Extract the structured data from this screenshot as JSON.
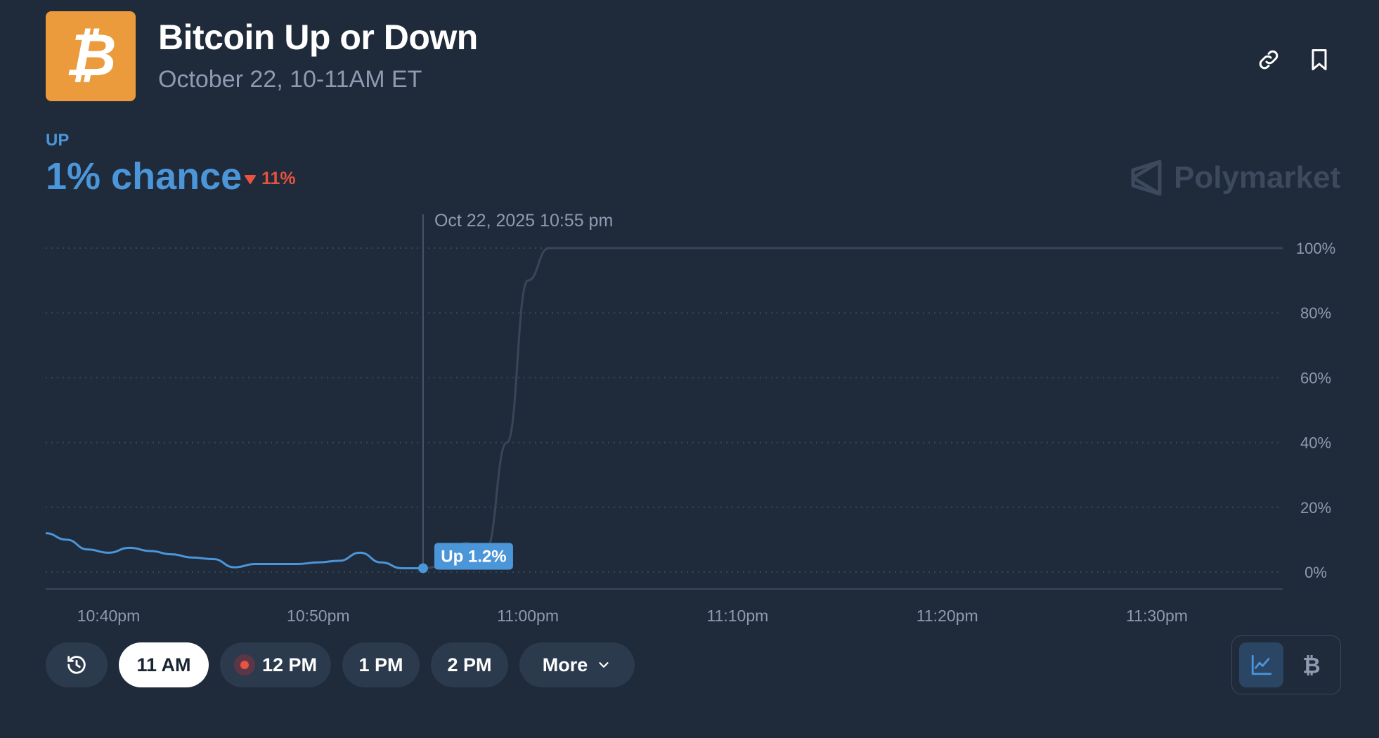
{
  "header": {
    "icon": "bitcoin-icon",
    "title": "Bitcoin Up or Down",
    "subtitle": "October 22, 10-11AM ET",
    "actions": [
      "link-icon",
      "bookmark-icon"
    ]
  },
  "outcome": {
    "label": "UP",
    "chance": "1% chance",
    "change": "11%",
    "change_direction": "down"
  },
  "watermark": "Polymarket",
  "tooltip": {
    "date": "Oct 22, 2025 10:55 pm",
    "badge": "Up 1.2%"
  },
  "chart_data": {
    "type": "line",
    "xlabel": "",
    "ylabel": "",
    "y_tick_labels": [
      "100%",
      "80%",
      "60%",
      "40%",
      "20%",
      "0%"
    ],
    "x_tick_labels": [
      "10:40pm",
      "10:50pm",
      "11:00pm",
      "11:10pm",
      "11:20pm",
      "11:30pm"
    ],
    "ylim": [
      0,
      100
    ],
    "grid": true,
    "series": [
      {
        "name": "Up",
        "color": "#4b95d9",
        "x": [
          "10:37pm",
          "10:38pm",
          "10:39pm",
          "10:40pm",
          "10:41pm",
          "10:42pm",
          "10:43pm",
          "10:44pm",
          "10:45pm",
          "10:46pm",
          "10:47pm",
          "10:48pm",
          "10:49pm",
          "10:50pm",
          "10:51pm",
          "10:52pm",
          "10:53pm",
          "10:54pm",
          "10:55pm"
        ],
        "values": [
          12,
          10,
          7,
          6,
          7.5,
          6.5,
          5.5,
          4.5,
          4,
          1.5,
          2.5,
          2.5,
          2.5,
          3,
          3.5,
          6,
          3,
          1.2,
          1.2
        ]
      },
      {
        "name": "",
        "color": "#3a4657",
        "x": [
          "10:55pm",
          "10:56pm",
          "10:57pm",
          "10:58pm",
          "10:59pm",
          "11:00pm",
          "11:01pm",
          "11:10pm",
          "11:20pm",
          "11:30pm",
          "11:36pm"
        ],
        "values": [
          1.2,
          2,
          9,
          7,
          40,
          90,
          100,
          100,
          100,
          100,
          100
        ]
      }
    ],
    "hover_x": "10:55pm"
  },
  "controls": {
    "history_icon": "history-icon",
    "tabs": [
      "11 AM",
      "12 PM",
      "1 PM",
      "2 PM"
    ],
    "active_tab": "11 AM",
    "live_tab": "12 PM",
    "more": "More"
  },
  "view_toggle": [
    "line-chart-icon",
    "bitcoin-price-icon"
  ],
  "colors": {
    "background": "#1f2a3a",
    "accent": "#4b95d9",
    "negative": "#e8533f",
    "brand_orange": "#eb9a3c"
  }
}
